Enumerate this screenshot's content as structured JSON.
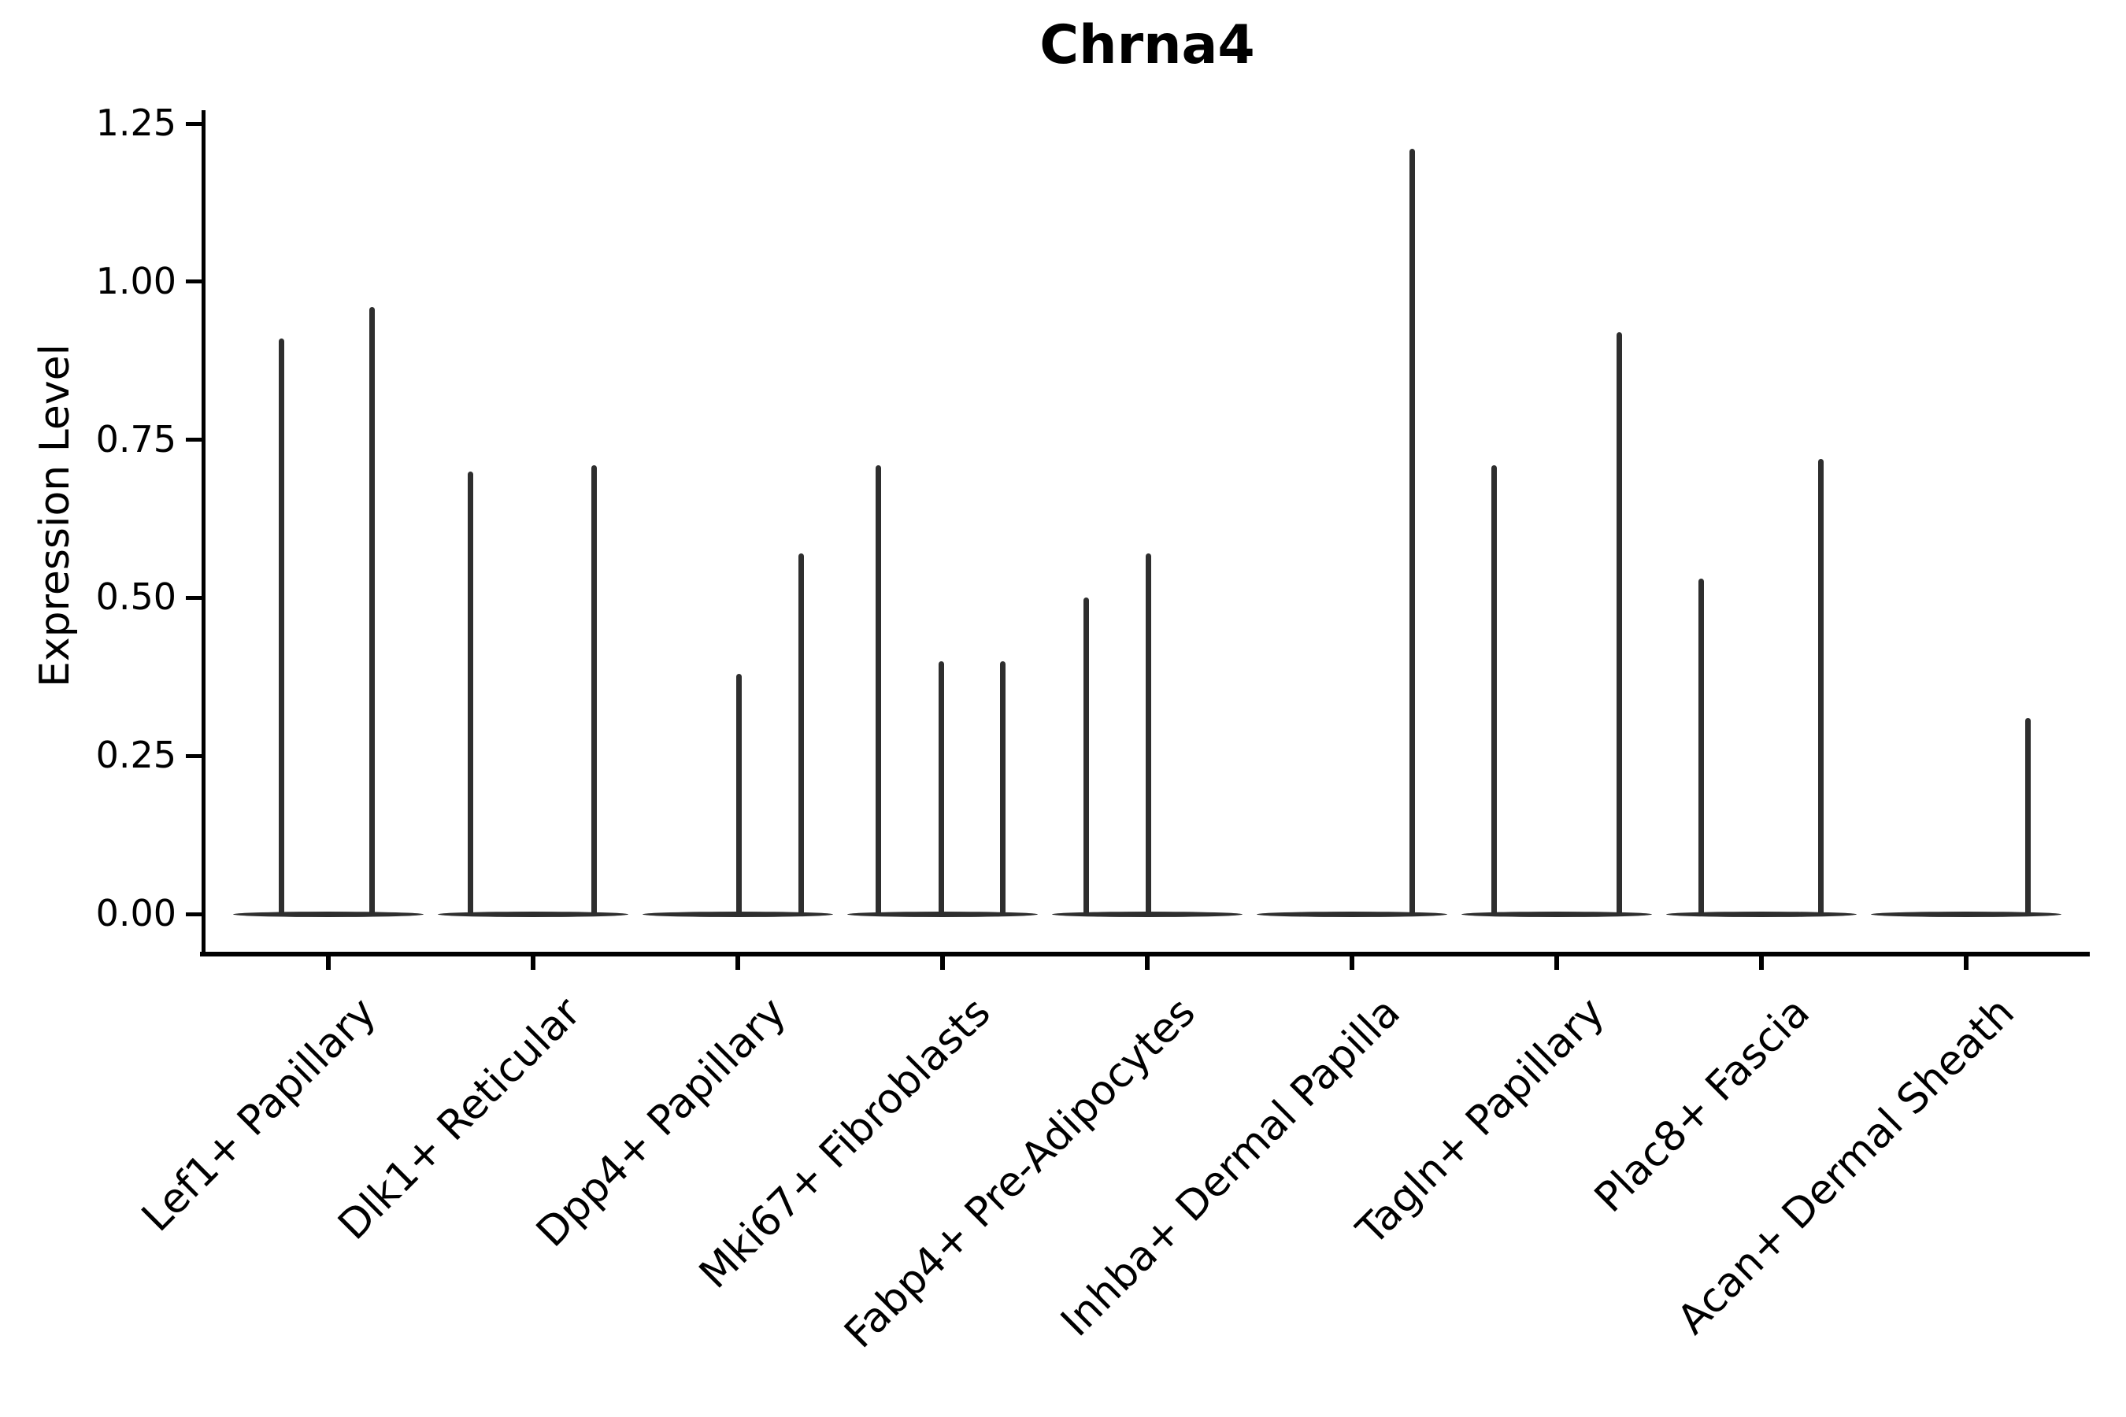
{
  "title": "Chrna4",
  "axes": {
    "ylabel": "Expression Level",
    "yticks": [
      {
        "label": "1.25",
        "value": 1.25
      },
      {
        "label": "1.00",
        "value": 1.0
      },
      {
        "label": "0.75",
        "value": 0.75
      },
      {
        "label": "0.50",
        "value": 0.5
      },
      {
        "label": "0.25",
        "value": 0.25
      },
      {
        "label": "0.00",
        "value": 0.0
      }
    ]
  },
  "colors": {
    "violin_line": "#2e2e2e",
    "spine": "#000000",
    "background": "#ffffff"
  },
  "chart_data": {
    "type": "violin",
    "title": "Chrna4",
    "xlabel": "",
    "ylabel": "Expression Level",
    "ylim": [
      0,
      1.28
    ],
    "yticks": [
      0,
      0.25,
      0.5,
      0.75,
      1.0,
      1.25
    ],
    "grid": false,
    "legend": "none",
    "description": "Violin plot of Chrna4 expression per cell type; each violin collapses to a flat body at 0 with thin density spikes reaching the listed maximum expression values.",
    "categories": [
      "Lef1+ Papillary",
      "Dlk1+ Reticular",
      "Dpp4+ Papillary",
      "Mki67+ Fibroblasts",
      "Fabp4+ Pre-Adipocytes",
      "Inhba+ Dermal Papilla",
      "Tagln+ Papillary",
      "Plac8+ Fascia",
      "Acan+ Dermal Sheath"
    ],
    "violins": [
      {
        "label": "Lef1+ Papillary",
        "spikes": [
          {
            "dx": -60,
            "value": 0.91
          },
          {
            "dx": 55,
            "value": 0.96
          }
        ]
      },
      {
        "label": "Dlk1+ Reticular",
        "spikes": [
          {
            "dx": -80,
            "value": 0.7
          },
          {
            "dx": 77,
            "value": 0.71
          }
        ]
      },
      {
        "label": "Dpp4+ Papillary",
        "spikes": [
          {
            "dx": 1,
            "value": 0.38
          },
          {
            "dx": 80,
            "value": 0.57
          }
        ]
      },
      {
        "label": "Mki67+ Fibroblasts",
        "spikes": [
          {
            "dx": -82,
            "value": 0.71
          },
          {
            "dx": -2,
            "value": 0.4
          },
          {
            "dx": 76,
            "value": 0.4
          }
        ]
      },
      {
        "label": "Fabp4+ Pre-Adipocytes",
        "spikes": [
          {
            "dx": -78,
            "value": 0.5
          },
          {
            "dx": 1,
            "value": 0.57
          }
        ]
      },
      {
        "label": "Inhba+ Dermal Papilla",
        "spikes": [
          {
            "dx": 76,
            "value": 1.21
          }
        ]
      },
      {
        "label": "Tagln+ Papillary",
        "spikes": [
          {
            "dx": -80,
            "value": 0.71
          },
          {
            "dx": 79,
            "value": 0.92
          }
        ]
      },
      {
        "label": "Plac8+ Fascia",
        "spikes": [
          {
            "dx": -77,
            "value": 0.53
          },
          {
            "dx": 75,
            "value": 0.72
          }
        ]
      },
      {
        "label": "Acan+ Dermal Sheath",
        "spikes": [
          {
            "dx": 78,
            "value": 0.31
          }
        ]
      }
    ]
  }
}
